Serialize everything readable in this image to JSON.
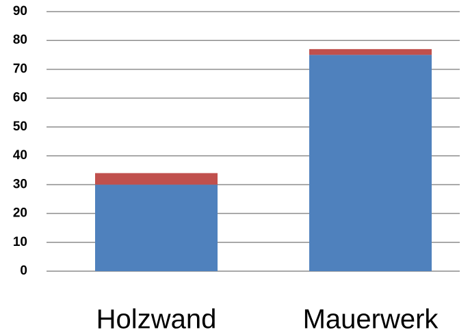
{
  "chart_data": {
    "type": "stacked_bar",
    "categories": [
      "Holzwand",
      "Mauerwerk"
    ],
    "series": [
      {
        "color": "#4f81bd",
        "values": [
          30,
          75
        ]
      },
      {
        "color": "#c0504d",
        "values": [
          4,
          2
        ]
      }
    ],
    "ylim": [
      0,
      90
    ],
    "yticks": [
      0,
      10,
      20,
      30,
      40,
      50,
      60,
      70,
      80,
      90
    ],
    "grid": true
  }
}
